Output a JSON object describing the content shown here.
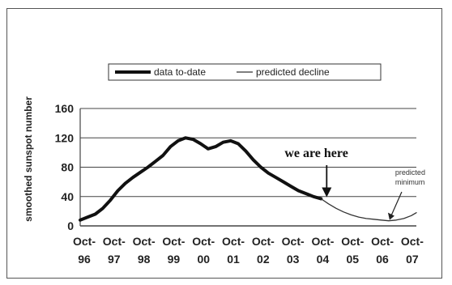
{
  "chart_data": {
    "type": "line",
    "ylabel": "smoothed sunspot number",
    "ylim": [
      0,
      160
    ],
    "yticks": [
      "0",
      "40",
      "80",
      "120",
      "160"
    ],
    "xlim": [
      "1996-10",
      "2007-12"
    ],
    "xtick_labels": [
      {
        "top": "Oct-",
        "bottom": "96"
      },
      {
        "top": "Oct-",
        "bottom": "97"
      },
      {
        "top": "Oct-",
        "bottom": "98"
      },
      {
        "top": "Oct-",
        "bottom": "99"
      },
      {
        "top": "Oct-",
        "bottom": "00"
      },
      {
        "top": "Oct-",
        "bottom": "01"
      },
      {
        "top": "Oct-",
        "bottom": "02"
      },
      {
        "top": "Oct-",
        "bottom": "03"
      },
      {
        "top": "Oct-",
        "bottom": "04"
      },
      {
        "top": "Oct-",
        "bottom": "05"
      },
      {
        "top": "Oct-",
        "bottom": "06"
      },
      {
        "top": "Oct-",
        "bottom": "07"
      }
    ],
    "grid": "horizontal",
    "legend_position": "top-center",
    "series": [
      {
        "name": "data to-date",
        "style": "thick",
        "color": "#111111",
        "x": [
          "1996-10",
          "1997-01",
          "1997-04",
          "1997-07",
          "1997-10",
          "1998-01",
          "1998-04",
          "1998-07",
          "1998-10",
          "1999-01",
          "1999-04",
          "1999-07",
          "1999-10",
          "2000-01",
          "2000-04",
          "2000-07",
          "2000-10",
          "2001-01",
          "2001-04",
          "2001-07",
          "2001-10",
          "2002-01",
          "2002-04",
          "2002-07",
          "2002-10",
          "2003-01",
          "2003-04",
          "2003-07",
          "2003-10",
          "2004-01",
          "2004-04",
          "2004-07",
          "2004-10"
        ],
        "y": [
          8,
          12,
          16,
          24,
          35,
          48,
          58,
          66,
          73,
          80,
          88,
          96,
          108,
          116,
          120,
          118,
          112,
          105,
          108,
          114,
          116,
          112,
          102,
          90,
          80,
          72,
          66,
          60,
          54,
          48,
          44,
          40,
          37
        ]
      },
      {
        "name": "predicted decline",
        "style": "thin",
        "color": "#333333",
        "x": [
          "2004-10",
          "2005-01",
          "2005-04",
          "2005-07",
          "2005-10",
          "2006-01",
          "2006-04",
          "2006-07",
          "2006-10",
          "2007-01",
          "2007-04",
          "2007-07",
          "2007-10",
          "2007-12"
        ],
        "y": [
          37,
          30,
          24,
          19,
          15,
          12,
          10,
          9,
          8,
          7,
          8,
          10,
          14,
          18
        ]
      }
    ],
    "annotations": [
      {
        "text": "we are here",
        "target": {
          "x": "2004-10",
          "y": 37
        }
      },
      {
        "text_lines": [
          "predicted",
          "minimum"
        ],
        "target": {
          "x": "2007-01",
          "y": 7
        }
      }
    ]
  }
}
